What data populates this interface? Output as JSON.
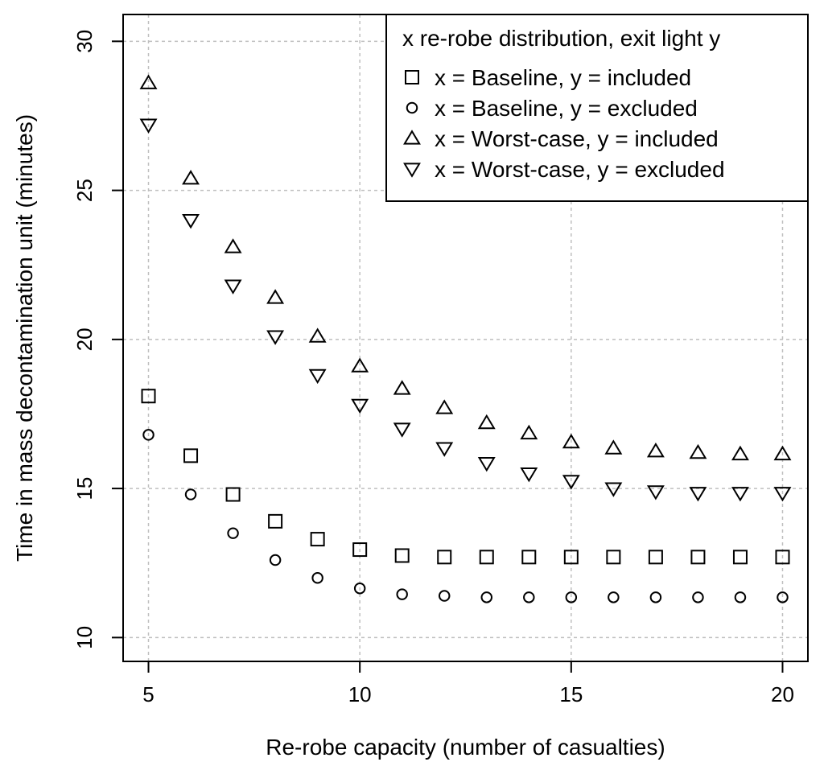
{
  "chart_data": {
    "type": "scatter",
    "title": "",
    "xlabel": "Re-robe capacity (number of casualties)",
    "ylabel": "Time in mass decontamination unit (minutes)",
    "xlim": [
      4.4,
      20.6
    ],
    "ylim": [
      9.2,
      30.9
    ],
    "x_ticks": [
      5,
      10,
      15,
      20
    ],
    "y_ticks": [
      10,
      15,
      20,
      25,
      30
    ],
    "grid": true,
    "legend": {
      "title": "x re-robe distribution, exit light y",
      "position": "top-right"
    },
    "x": [
      5,
      6,
      7,
      8,
      9,
      10,
      11,
      12,
      13,
      14,
      15,
      16,
      17,
      18,
      19,
      20
    ],
    "series": [
      {
        "name": "x = Baseline, y = included",
        "marker": "square",
        "values": [
          18.1,
          16.1,
          14.8,
          13.9,
          13.3,
          12.95,
          12.75,
          12.7,
          12.7,
          12.7,
          12.7,
          12.7,
          12.7,
          12.7,
          12.7,
          12.7
        ]
      },
      {
        "name": "x = Baseline, y = excluded",
        "marker": "circle",
        "values": [
          16.8,
          14.8,
          13.5,
          12.6,
          12.0,
          11.65,
          11.45,
          11.4,
          11.35,
          11.35,
          11.35,
          11.35,
          11.35,
          11.35,
          11.35,
          11.35
        ]
      },
      {
        "name": "x = Worst-case, y = included",
        "marker": "triangle-up",
        "values": [
          28.6,
          25.4,
          23.1,
          21.4,
          20.1,
          19.1,
          18.35,
          17.7,
          17.2,
          16.85,
          16.55,
          16.35,
          16.25,
          16.2,
          16.15,
          16.15
        ]
      },
      {
        "name": "x = Worst-case, y = excluded",
        "marker": "triangle-down",
        "values": [
          27.2,
          24.0,
          21.8,
          20.1,
          18.8,
          17.8,
          17.0,
          16.35,
          15.85,
          15.5,
          15.25,
          15.0,
          14.9,
          14.85,
          14.85,
          14.85
        ]
      }
    ]
  }
}
